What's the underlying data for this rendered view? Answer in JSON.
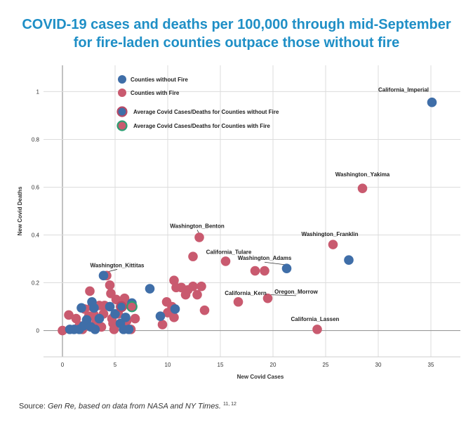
{
  "title": {
    "line1": "COVID-19 cases and deaths per 100,000 through mid-September",
    "line2": "for fire-laden counties outpace those without fire"
  },
  "source": {
    "prefix": "Source: ",
    "text": "Gen Re, based on data from NASA and NY Times.",
    "refs": "11, 12"
  },
  "colors": {
    "without_fire": "#3f6ea8",
    "with_fire": "#c95a6f",
    "avg_without_ring": "#b84a66",
    "avg_with_ring": "#2e9e73",
    "title": "#1f8fc6"
  },
  "chart_data": {
    "type": "scatter",
    "xlabel": "New Covid Cases",
    "ylabel": "New Covid Deaths",
    "xlim": [
      -1.8,
      37.8
    ],
    "ylim": [
      -0.11,
      1.11
    ],
    "xticks": [
      0,
      5,
      10,
      15,
      20,
      25,
      30,
      35
    ],
    "yticks": [
      0,
      0.2,
      0.4,
      0.6,
      0.8,
      1
    ],
    "ytick_labels": [
      "0",
      "0.2",
      "0.4",
      "0.6",
      "0.8",
      "1"
    ],
    "legend": [
      {
        "key": "without",
        "label": "Counties without Fire"
      },
      {
        "key": "with",
        "label": "Counties with Fire"
      },
      {
        "key": "avg_without",
        "label": "Average Covid Cases/Deaths for Counties without Fire"
      },
      {
        "key": "avg_with",
        "label": "Average Covid Cases/Deaths for Counties with Fire"
      }
    ],
    "series": [
      {
        "name": "Counties with Fire",
        "key": "with",
        "points": [
          [
            0,
            0
          ],
          [
            0.6,
            0.065
          ],
          [
            1.3,
            0.05
          ],
          [
            1.6,
            0.02
          ],
          [
            1.9,
            0.005
          ],
          [
            2.1,
            0.09
          ],
          [
            2.3,
            0.035
          ],
          [
            2.5,
            0.06
          ],
          [
            2.6,
            0.165
          ],
          [
            2.8,
            0.1
          ],
          [
            3.0,
            0.065
          ],
          [
            3.2,
            0.04
          ],
          [
            3.5,
            0.105
          ],
          [
            3.7,
            0.015
          ],
          [
            3.9,
            0.07
          ],
          [
            4.0,
            0.105
          ],
          [
            4.2,
            0.23
          ],
          [
            4.5,
            0.19
          ],
          [
            4.6,
            0.155
          ],
          [
            4.7,
            0.05
          ],
          [
            4.8,
            0.03
          ],
          [
            4.9,
            0.005
          ],
          [
            5.1,
            0.13
          ],
          [
            5.3,
            0.07
          ],
          [
            5.6,
            0.1
          ],
          [
            5.9,
            0.135
          ],
          [
            6.1,
            0.04
          ],
          [
            6.3,
            0.11
          ],
          [
            6.5,
            0.005
          ],
          [
            6.9,
            0.05
          ],
          [
            9.5,
            0.025
          ],
          [
            9.9,
            0.12
          ],
          [
            10.0,
            0.075
          ],
          [
            10.4,
            0.1
          ],
          [
            10.6,
            0.21
          ],
          [
            10.8,
            0.18
          ],
          [
            10.6,
            0.055
          ],
          [
            11.3,
            0.18
          ],
          [
            11.7,
            0.15
          ],
          [
            11.9,
            0.17
          ],
          [
            12.4,
            0.185
          ],
          [
            12.8,
            0.15
          ],
          [
            13.2,
            0.185
          ],
          [
            13.5,
            0.085
          ],
          [
            12.4,
            0.31
          ],
          [
            13.0,
            0.39
          ],
          [
            15.5,
            0.29
          ],
          [
            16.7,
            0.12
          ],
          [
            18.3,
            0.25
          ],
          [
            19.2,
            0.25
          ],
          [
            19.5,
            0.135
          ],
          [
            24.2,
            0.005
          ],
          [
            25.7,
            0.36
          ],
          [
            28.5,
            0.595
          ]
        ]
      },
      {
        "name": "Counties without Fire",
        "key": "without",
        "points": [
          [
            0.7,
            0.005
          ],
          [
            1.1,
            0.005
          ],
          [
            1.6,
            0.005
          ],
          [
            1.8,
            0.095
          ],
          [
            2.0,
            0.02
          ],
          [
            2.3,
            0.045
          ],
          [
            2.7,
            0.015
          ],
          [
            2.8,
            0.12
          ],
          [
            3.0,
            0.095
          ],
          [
            3.1,
            0.005
          ],
          [
            3.5,
            0.05
          ],
          [
            3.9,
            0.23
          ],
          [
            4.5,
            0.1
          ],
          [
            5.0,
            0.07
          ],
          [
            5.5,
            0.03
          ],
          [
            5.8,
            0.005
          ],
          [
            6.0,
            0.055
          ],
          [
            6.3,
            0.005
          ],
          [
            6.6,
            0.115
          ],
          [
            8.3,
            0.175
          ],
          [
            9.3,
            0.06
          ],
          [
            10.7,
            0.09
          ],
          [
            21.3,
            0.26
          ],
          [
            27.2,
            0.295
          ],
          [
            35.1,
            0.955
          ]
        ]
      },
      {
        "name": "Average Covid Cases/Deaths for Counties without Fire",
        "key": "avg_without",
        "points": [
          [
            5.6,
            0.1
          ]
        ]
      },
      {
        "name": "Average Covid Cases/Deaths for Counties with Fire",
        "key": "avg_with",
        "points": [
          [
            6.6,
            0.1
          ]
        ]
      }
    ],
    "annotations": [
      {
        "text": "California_Imperial",
        "x": 35.1,
        "y": 0.955,
        "lx": 32.4,
        "ly": 1.0,
        "leader": false
      },
      {
        "text": "Washington_Yakima",
        "x": 28.5,
        "y": 0.595,
        "lx": 28.5,
        "ly": 0.645,
        "leader": false
      },
      {
        "text": "Washington_Franklin",
        "x": 25.7,
        "y": 0.36,
        "lx": 25.4,
        "ly": 0.395,
        "leader": false
      },
      {
        "text": "Washington_Benton",
        "x": 13.0,
        "y": 0.39,
        "lx": 12.8,
        "ly": 0.43,
        "leader": true
      },
      {
        "text": "California_Tulare",
        "x": 12.4,
        "y": 0.31,
        "lx": 15.8,
        "ly": 0.32,
        "leader": false
      },
      {
        "text": "Washington_Adams",
        "x": 21.3,
        "y": 0.26,
        "lx": 19.2,
        "ly": 0.295,
        "leader": true
      },
      {
        "text": "Washington_Kittitas",
        "x": 3.9,
        "y": 0.23,
        "lx": 5.2,
        "ly": 0.265,
        "leader": true
      },
      {
        "text": "California_Kern",
        "x": 16.7,
        "y": 0.12,
        "lx": 17.4,
        "ly": 0.148,
        "leader": false
      },
      {
        "text": "Oregon_Morrow",
        "x": 19.5,
        "y": 0.135,
        "lx": 22.2,
        "ly": 0.155,
        "leader": true
      },
      {
        "text": "California_Lassen",
        "x": 24.2,
        "y": 0.005,
        "lx": 24.0,
        "ly": 0.04,
        "leader": false
      }
    ]
  }
}
